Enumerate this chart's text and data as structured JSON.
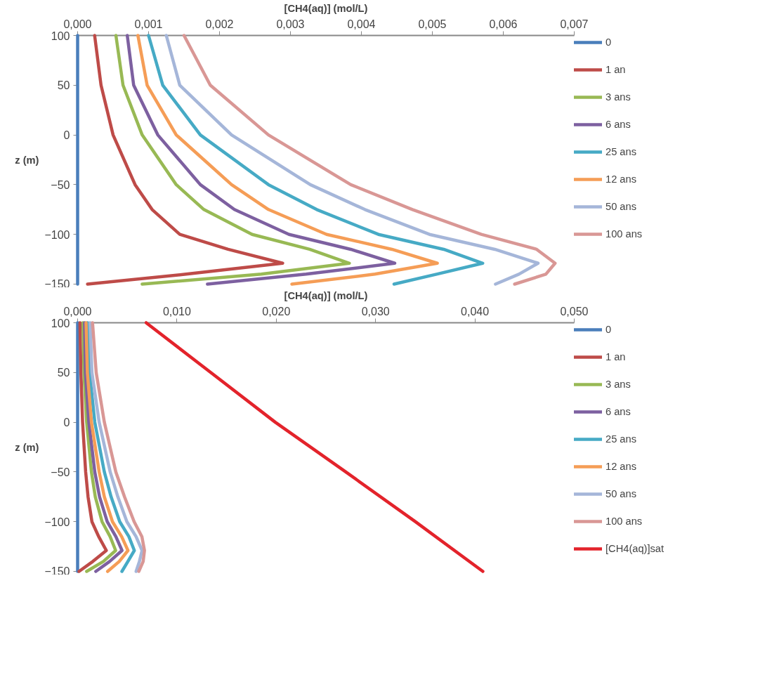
{
  "chart_data": [
    {
      "type": "line",
      "xlabel": "[CH4(aq)] (mol/L)",
      "ylabel": "z (m)",
      "xlim": [
        0,
        0.007
      ],
      "xticks": [
        {
          "value": 0,
          "label": "0,000"
        },
        {
          "value": 0.001,
          "label": "0,001"
        },
        {
          "value": 0.002,
          "label": "0,002"
        },
        {
          "value": 0.003,
          "label": "0,003"
        },
        {
          "value": 0.004,
          "label": "0,004"
        },
        {
          "value": 0.005,
          "label": "0,005"
        },
        {
          "value": 0.006,
          "label": "0,006"
        },
        {
          "value": 0.007,
          "label": "0,007"
        }
      ],
      "ylim": [
        -150,
        100
      ],
      "yticks": [
        100,
        50,
        0,
        -50,
        -100,
        -150
      ],
      "grid": false,
      "legend": "right",
      "marker": "none",
      "line_style": "solid",
      "series": [
        {
          "name": "0",
          "color": "#4a7ebb",
          "x": [
            0,
            0,
            0,
            0,
            0,
            0
          ],
          "values": [
            100,
            50,
            0,
            -50,
            -100,
            -150
          ]
        },
        {
          "name": "1 an",
          "color": "#be4b48",
          "x": [
            0.00024,
            0.00033,
            0.0005,
            0.00081,
            0.00105,
            0.00144,
            0.00212,
            0.00289,
            0.00153,
            0.00014
          ],
          "values": [
            100,
            50,
            0,
            -50,
            -75,
            -100,
            -115,
            -129,
            -140,
            -150
          ]
        },
        {
          "name": "3 ans",
          "color": "#98b954",
          "x": [
            0.00054,
            0.00064,
            0.00091,
            0.00139,
            0.00178,
            0.00246,
            0.00327,
            0.00383,
            0.00259,
            0.00091
          ],
          "values": [
            100,
            50,
            0,
            -50,
            -75,
            -100,
            -115,
            -129,
            -140,
            -150
          ]
        },
        {
          "name": "6 ans",
          "color": "#7d60a0",
          "x": [
            0.0007,
            0.00079,
            0.00113,
            0.00173,
            0.00221,
            0.00298,
            0.00385,
            0.00447,
            0.00322,
            0.00183
          ],
          "values": [
            100,
            50,
            0,
            -50,
            -75,
            -100,
            -115,
            -129,
            -140,
            -150
          ]
        },
        {
          "name": "25 ans",
          "color": "#46aac5",
          "x": [
            0.001,
            0.0012,
            0.00173,
            0.00269,
            0.00337,
            0.00424,
            0.00516,
            0.00571,
            0.00506,
            0.00446
          ],
          "values": [
            100,
            50,
            0,
            -50,
            -75,
            -100,
            -115,
            -129,
            -140,
            -150
          ]
        },
        {
          "name": "12 ans",
          "color": "#f59d56",
          "x": [
            0.00085,
            0.00098,
            0.00139,
            0.00217,
            0.00269,
            0.00351,
            0.00443,
            0.00507,
            0.00419,
            0.00302
          ],
          "values": [
            100,
            50,
            0,
            -50,
            -75,
            -100,
            -115,
            -129,
            -140,
            -150
          ]
        },
        {
          "name": "50 ans",
          "color": "#a5b6d9",
          "x": [
            0.00125,
            0.00144,
            0.00217,
            0.00328,
            0.00405,
            0.00496,
            0.00588,
            0.00649,
            0.00622,
            0.00589
          ],
          "values": [
            100,
            50,
            0,
            -50,
            -75,
            -100,
            -115,
            -129,
            -140,
            -150
          ]
        },
        {
          "name": "100 ans",
          "color": "#d99795",
          "x": [
            0.0015,
            0.00187,
            0.00269,
            0.00385,
            0.00472,
            0.00569,
            0.00647,
            0.00673,
            0.0066,
            0.00616
          ],
          "values": [
            100,
            50,
            0,
            -50,
            -75,
            -100,
            -115,
            -129,
            -140,
            -150
          ]
        }
      ]
    },
    {
      "type": "line",
      "xlabel": "[CH4(aq)] (mol/L)",
      "ylabel": "z (m)",
      "xlim": [
        0,
        0.05
      ],
      "xticks": [
        {
          "value": 0,
          "label": "0,000"
        },
        {
          "value": 0.01,
          "label": "0,010"
        },
        {
          "value": 0.02,
          "label": "0,020"
        },
        {
          "value": 0.03,
          "label": "0,030"
        },
        {
          "value": 0.04,
          "label": "0,040"
        },
        {
          "value": 0.05,
          "label": "0,050"
        }
      ],
      "ylim": [
        -150,
        100
      ],
      "yticks": [
        100,
        50,
        0,
        -50,
        -100,
        -150
      ],
      "grid": false,
      "legend": "right",
      "marker": "none",
      "line_style": "solid",
      "series": [
        {
          "name": "0",
          "color": "#4a7ebb",
          "x": [
            0,
            0,
            0,
            0,
            0,
            0
          ],
          "values": [
            100,
            50,
            0,
            -50,
            -100,
            -150
          ]
        },
        {
          "name": "1 an",
          "color": "#be4b48",
          "x": [
            0.00024,
            0.00033,
            0.0005,
            0.00081,
            0.00105,
            0.00144,
            0.00212,
            0.00289,
            0.00153,
            0.00014
          ],
          "values": [
            100,
            50,
            0,
            -50,
            -75,
            -100,
            -115,
            -129,
            -140,
            -150
          ]
        },
        {
          "name": "3 ans",
          "color": "#98b954",
          "x": [
            0.00054,
            0.00064,
            0.00091,
            0.00139,
            0.00178,
            0.00246,
            0.00327,
            0.00383,
            0.00259,
            0.00091
          ],
          "values": [
            100,
            50,
            0,
            -50,
            -75,
            -100,
            -115,
            -129,
            -140,
            -150
          ]
        },
        {
          "name": "6 ans",
          "color": "#7d60a0",
          "x": [
            0.0007,
            0.00079,
            0.00113,
            0.00173,
            0.00221,
            0.00298,
            0.00385,
            0.00447,
            0.00322,
            0.00183
          ],
          "values": [
            100,
            50,
            0,
            -50,
            -75,
            -100,
            -115,
            -129,
            -140,
            -150
          ]
        },
        {
          "name": "25 ans",
          "color": "#46aac5",
          "x": [
            0.001,
            0.0012,
            0.00173,
            0.00269,
            0.00337,
            0.00424,
            0.00516,
            0.00571,
            0.00506,
            0.00446
          ],
          "values": [
            100,
            50,
            0,
            -50,
            -75,
            -100,
            -115,
            -129,
            -140,
            -150
          ]
        },
        {
          "name": "12 ans",
          "color": "#f59d56",
          "x": [
            0.00085,
            0.00098,
            0.00139,
            0.00217,
            0.00269,
            0.00351,
            0.00443,
            0.00507,
            0.00419,
            0.00302
          ],
          "values": [
            100,
            50,
            0,
            -50,
            -75,
            -100,
            -115,
            -129,
            -140,
            -150
          ]
        },
        {
          "name": "50 ans",
          "color": "#a5b6d9",
          "x": [
            0.00125,
            0.00144,
            0.00217,
            0.00328,
            0.00405,
            0.00496,
            0.00588,
            0.00649,
            0.00622,
            0.00589
          ],
          "values": [
            100,
            50,
            0,
            -50,
            -75,
            -100,
            -115,
            -129,
            -140,
            -150
          ]
        },
        {
          "name": "100 ans",
          "color": "#d99795",
          "x": [
            0.0015,
            0.00187,
            0.00269,
            0.00385,
            0.00472,
            0.00569,
            0.00647,
            0.00673,
            0.0066,
            0.00616
          ],
          "values": [
            100,
            50,
            0,
            -50,
            -75,
            -100,
            -115,
            -129,
            -140,
            -150
          ]
        },
        {
          "name": "[CH4(aq)]sat",
          "color": "#e3232b",
          "x": [
            0.0069,
            0.0134,
            0.0199,
            0.027,
            0.034,
            0.0408
          ],
          "values": [
            100,
            50,
            0,
            -50,
            -100,
            -150
          ]
        }
      ]
    }
  ]
}
